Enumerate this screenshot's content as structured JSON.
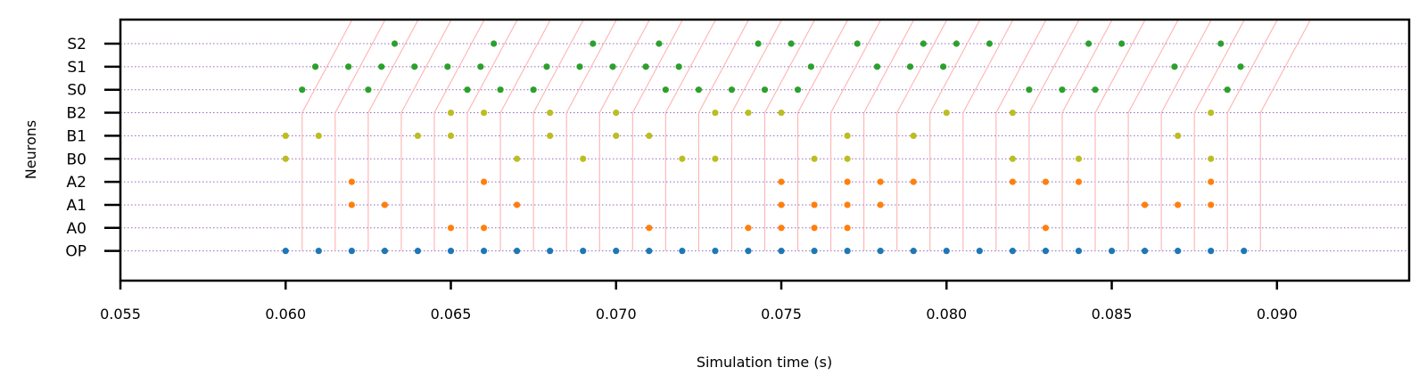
{
  "chart_data": {
    "type": "scatter",
    "xlabel": "Simulation time (s)",
    "ylabel": "Neurons",
    "xlim": [
      0.055,
      0.094
    ],
    "x_ticks": [
      0.055,
      0.06,
      0.065,
      0.07,
      0.075,
      0.08,
      0.085,
      0.09
    ],
    "x_tick_labels": [
      "0.055",
      "0.060",
      "0.065",
      "0.070",
      "0.075",
      "0.080",
      "0.085",
      "0.090"
    ],
    "neurons": [
      "OP",
      "A0",
      "A1",
      "A2",
      "B0",
      "B1",
      "B2",
      "S0",
      "S1",
      "S2"
    ],
    "grid": "horizontal dotted",
    "series": [
      {
        "neuron": "OP",
        "color": "#1f77b4",
        "spikes": [
          0.06,
          0.061,
          0.062,
          0.063,
          0.064,
          0.065,
          0.066,
          0.067,
          0.068,
          0.069,
          0.07,
          0.071,
          0.072,
          0.073,
          0.074,
          0.075,
          0.076,
          0.077,
          0.078,
          0.079,
          0.08,
          0.081,
          0.082,
          0.083,
          0.084,
          0.085,
          0.086,
          0.087,
          0.088,
          0.089
        ]
      },
      {
        "neuron": "A0",
        "color": "#ff7f0e",
        "spikes": [
          0.065,
          0.066,
          0.071,
          0.074,
          0.075,
          0.076,
          0.077,
          0.083
        ]
      },
      {
        "neuron": "A1",
        "color": "#ff7f0e",
        "spikes": [
          0.062,
          0.063,
          0.067,
          0.075,
          0.076,
          0.077,
          0.078,
          0.086,
          0.087,
          0.088
        ]
      },
      {
        "neuron": "A2",
        "color": "#ff7f0e",
        "spikes": [
          0.062,
          0.066,
          0.075,
          0.077,
          0.078,
          0.079,
          0.082,
          0.083,
          0.084,
          0.088
        ]
      },
      {
        "neuron": "B0",
        "color": "#bcbd22",
        "spikes": [
          0.06,
          0.067,
          0.069,
          0.072,
          0.073,
          0.076,
          0.077,
          0.082,
          0.084,
          0.088
        ]
      },
      {
        "neuron": "B1",
        "color": "#bcbd22",
        "spikes": [
          0.06,
          0.061,
          0.064,
          0.065,
          0.068,
          0.07,
          0.071,
          0.077,
          0.079,
          0.087
        ]
      },
      {
        "neuron": "B2",
        "color": "#bcbd22",
        "spikes": [
          0.065,
          0.066,
          0.068,
          0.07,
          0.073,
          0.074,
          0.075,
          0.08,
          0.082,
          0.088
        ]
      },
      {
        "neuron": "S0",
        "color": "#2ca02c",
        "spikes": [
          0.0605,
          0.0625,
          0.0655,
          0.0665,
          0.0675,
          0.0715,
          0.0725,
          0.0735,
          0.0745,
          0.0755,
          0.0825,
          0.0835,
          0.0845,
          0.0885
        ]
      },
      {
        "neuron": "S1",
        "color": "#2ca02c",
        "spikes": [
          0.0609,
          0.0619,
          0.0629,
          0.0639,
          0.0649,
          0.0659,
          0.0679,
          0.0689,
          0.0699,
          0.0709,
          0.0719,
          0.0759,
          0.0779,
          0.0789,
          0.0799,
          0.0869,
          0.0889
        ]
      },
      {
        "neuron": "S2",
        "color": "#2ca02c",
        "spikes": [
          0.0633,
          0.0663,
          0.0693,
          0.0713,
          0.0743,
          0.0753,
          0.0773,
          0.0793,
          0.0803,
          0.0813,
          0.0843,
          0.0853,
          0.0883
        ]
      }
    ],
    "period_lines": {
      "color": "#ffb3b3",
      "times": [
        0.0605,
        0.0615,
        0.0625,
        0.0635,
        0.0645,
        0.0655,
        0.0665,
        0.0675,
        0.0685,
        0.0695,
        0.0705,
        0.0715,
        0.0725,
        0.0735,
        0.0745,
        0.0755,
        0.0765,
        0.0775,
        0.0785,
        0.0795,
        0.0805,
        0.0815,
        0.0825,
        0.0835,
        0.0845,
        0.0855,
        0.0865,
        0.0875,
        0.0885,
        0.0895
      ],
      "vertical_from": "OP",
      "vertical_to": "B2",
      "slant_end": "S2",
      "slant_dt": 0.0015
    }
  }
}
